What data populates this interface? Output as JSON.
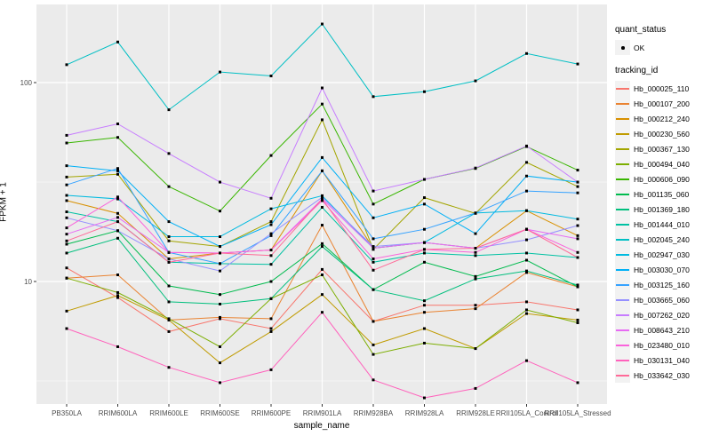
{
  "figure": {
    "background": "#FFFFFF",
    "panel_background": "#EBEBEB",
    "gridline_color": "#FFFFFF",
    "marker_color": "#000000",
    "axis_text_color": "#4D4D4D"
  },
  "legend": {
    "quant_status_title": "quant_status",
    "quant_status_items": [
      "OK"
    ],
    "tracking_id_title": "tracking_id"
  },
  "chart_data": {
    "type": "line",
    "title": "",
    "xlabel": "sample_name",
    "ylabel": "FPKM + 1",
    "y_scale": "log10",
    "grid": true,
    "legend_position": "right",
    "y_tick_labels": [
      "100",
      "10"
    ],
    "y_tick_values": [
      100,
      10
    ],
    "y_minor_values": [
      31.62,
      3.162
    ],
    "ylim": [
      2.4,
      250
    ],
    "categories": [
      "PB350LA",
      "RRIM600LA",
      "RRIM600LE",
      "RRIM600SE",
      "RRIM600PE",
      "RRIM901LA",
      "RRIM928BA",
      "RRIM928LA",
      "RRIM928LE",
      "RRII105LA_Control",
      "RRII105LA_Stressed"
    ],
    "quant_status": "OK",
    "series": [
      {
        "name": "Hb_000025_110",
        "color": "#F8766D",
        "values": [
          11.7,
          8.3,
          5.6,
          6.5,
          5.8,
          11.5,
          6.3,
          7.6,
          7.6,
          7.9,
          7.2
        ]
      },
      {
        "name": "Hb_000107_200",
        "color": "#EA8331",
        "values": [
          10.4,
          10.8,
          6.4,
          6.6,
          6.5,
          19.2,
          6.3,
          7.0,
          7.3,
          11.1,
          9.4
        ]
      },
      {
        "name": "Hb_000212_240",
        "color": "#D89000",
        "values": [
          25.5,
          22,
          13,
          13.9,
          14.4,
          36,
          14.7,
          15.7,
          14.7,
          22.7,
          17
        ]
      },
      {
        "name": "Hb_000230_560",
        "color": "#C09B00",
        "values": [
          7.1,
          8.5,
          6.4,
          3.9,
          5.6,
          8.6,
          4.8,
          5.8,
          4.6,
          6.9,
          6.4
        ]
      },
      {
        "name": "Hb_000367_130",
        "color": "#A3A500",
        "values": [
          33.5,
          34.6,
          16,
          15,
          20,
          65,
          14.5,
          26.4,
          22,
          39.7,
          30
        ]
      },
      {
        "name": "Hb_000494_040",
        "color": "#7CAE00",
        "values": [
          10.4,
          8.8,
          6.5,
          4.7,
          8.2,
          10.8,
          4.3,
          4.9,
          4.6,
          7.2,
          6.2
        ]
      },
      {
        "name": "Hb_000606_090",
        "color": "#39B600",
        "values": [
          49.7,
          53,
          30,
          22.6,
          43,
          78,
          24.5,
          32.6,
          37,
          47.7,
          36.3
        ]
      },
      {
        "name": "Hb_001135_060",
        "color": "#00BB4E",
        "values": [
          15.4,
          18,
          9.5,
          8.6,
          10,
          15.5,
          9.1,
          12.5,
          10.6,
          12.8,
          9.4
        ]
      },
      {
        "name": "Hb_001369_180",
        "color": "#00BF7D",
        "values": [
          13.9,
          16.5,
          7.9,
          7.7,
          8.2,
          15,
          9.1,
          8,
          10.3,
          11.3,
          9.6
        ]
      },
      {
        "name": "Hb_001444_010",
        "color": "#00C1A3",
        "values": [
          22.4,
          20,
          12.5,
          12.3,
          12.2,
          23.6,
          12.5,
          13.9,
          13.5,
          13.9,
          13.2
        ]
      },
      {
        "name": "Hb_002045_240",
        "color": "#00BFC4",
        "values": [
          123,
          160,
          73,
          113,
          108,
          197,
          85,
          90,
          102,
          140,
          124
        ]
      },
      {
        "name": "Hb_002947_030",
        "color": "#00BAE0",
        "values": [
          27.1,
          26,
          16.8,
          16.8,
          23.2,
          27,
          14.7,
          15.7,
          22.1,
          22.7,
          20.6
        ]
      },
      {
        "name": "Hb_003030_070",
        "color": "#00B0F6",
        "values": [
          38.2,
          36,
          20,
          15,
          19.3,
          42,
          20.9,
          24.5,
          17.4,
          33.9,
          31.6
        ]
      },
      {
        "name": "Hb_003125_160",
        "color": "#35A2FF",
        "values": [
          30.6,
          37,
          14,
          12.3,
          17,
          36,
          16.4,
          18.3,
          22.1,
          28.5,
          27.9
        ]
      },
      {
        "name": "Hb_003665_060",
        "color": "#9590FF",
        "values": [
          20.9,
          18,
          13,
          11.3,
          17.4,
          26.5,
          15,
          15.7,
          14.7,
          16.2,
          19.1
        ]
      },
      {
        "name": "Hb_007262_020",
        "color": "#C77CFF",
        "values": [
          54.3,
          62,
          44,
          31.6,
          26.2,
          94,
          28.5,
          32.6,
          37.2,
          48,
          31.6
        ]
      },
      {
        "name": "Hb_008643_210",
        "color": "#E76BF3",
        "values": [
          17.3,
          21,
          14,
          13.9,
          14.4,
          26,
          14.7,
          15.7,
          14.7,
          18.3,
          16.4
        ]
      },
      {
        "name": "Hb_023480_010",
        "color": "#FA62DB",
        "values": [
          18.6,
          26.6,
          14,
          13.9,
          14.4,
          25.5,
          13,
          14.5,
          14,
          18.3,
          14
        ]
      },
      {
        "name": "Hb_030131_040",
        "color": "#FF62BC",
        "values": [
          5.8,
          4.7,
          3.7,
          3.1,
          3.6,
          7,
          3.2,
          2.6,
          2.9,
          4,
          3.1
        ]
      },
      {
        "name": "Hb_033642_030",
        "color": "#FF6A98",
        "values": [
          16,
          20,
          12.5,
          13.9,
          13.5,
          26,
          11.4,
          14.5,
          14.7,
          18.3,
          13.2
        ]
      }
    ]
  }
}
